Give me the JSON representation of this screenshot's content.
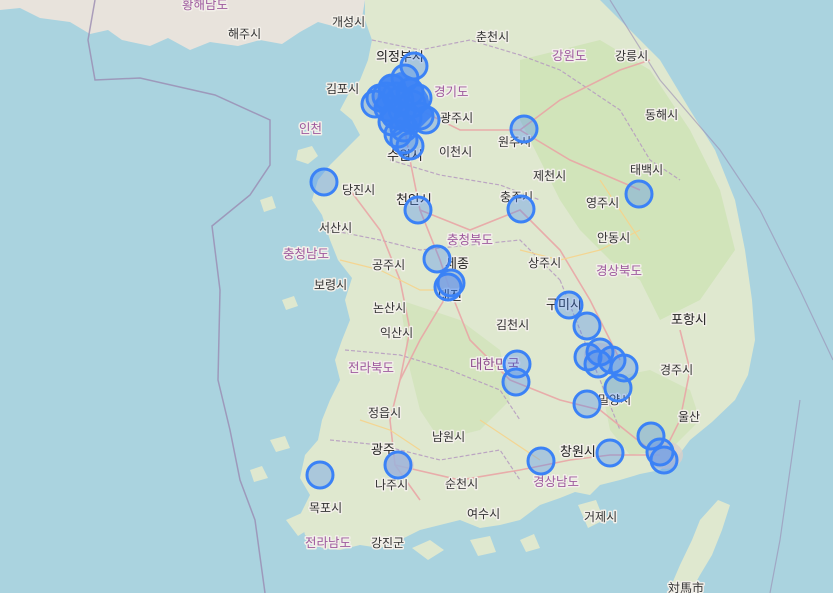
{
  "map": {
    "markers_color": "#3b82f6",
    "marker_fill": "rgba(59,130,246,0.32)",
    "labels": {
      "hwanghae": "황해남도",
      "haeju": "해주시",
      "kaesong": "개성시",
      "uijeongbu": "의정부시",
      "chuncheon": "춘천시",
      "gangwon": "강원도",
      "gangneung": "강릉시",
      "gimpo": "김포시",
      "gyeonggi": "경기도",
      "incheon": "인천",
      "gwangju_gg": "광주시",
      "wonju": "원주시",
      "donghae": "동해시",
      "icheon": "이천시",
      "suwon": "수원시",
      "jecheon": "제천시",
      "taebaek": "태백시",
      "dangjin": "당진시",
      "cheonan": "천안시",
      "chungju": "충주시",
      "yeongju": "영주시",
      "seosan": "서산시",
      "chungbuk": "충청북도",
      "chungnam": "충청남도",
      "andong": "안동시",
      "gongju": "공주시",
      "sejong": "세종",
      "sangju": "상주시",
      "gyeongbuk": "경상북도",
      "boryeong": "보령시",
      "daejeon": "대전",
      "gumi": "구미시",
      "pohang": "포항시",
      "nonsan": "논산시",
      "gimcheon": "김천시",
      "iksan": "익산시",
      "korea": "대한민국",
      "gyeongju": "경주시",
      "jeonbuk": "전라북도",
      "miryang": "밀양시",
      "jeongeup": "정읍시",
      "ulsan": "울산",
      "namwon": "남원시",
      "gwangju": "광주",
      "changwon": "창원시",
      "naju": "나주시",
      "suncheon": "순천시",
      "gyeongnam": "경상남도",
      "mokpo": "목포시",
      "yeosu": "여수시",
      "geoje": "거제시",
      "jeonnam": "전라남도",
      "gangjin": "강진군",
      "tsushima": "対馬市"
    }
  }
}
